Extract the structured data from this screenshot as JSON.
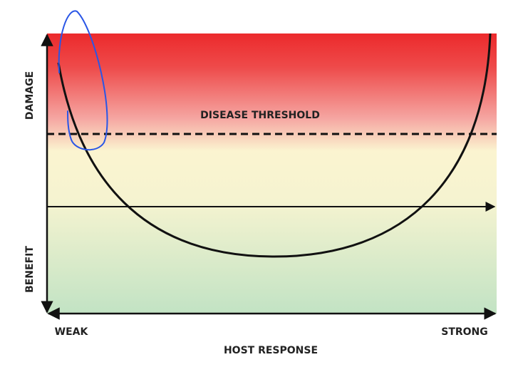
{
  "axes": {
    "y_top": "DAMAGE",
    "y_bottom": "BENEFIT",
    "x_left": "WEAK",
    "x_right": "STRONG",
    "x_title": "HOST RESPONSE"
  },
  "threshold_label": "DISEASE THRESHOLD"
}
